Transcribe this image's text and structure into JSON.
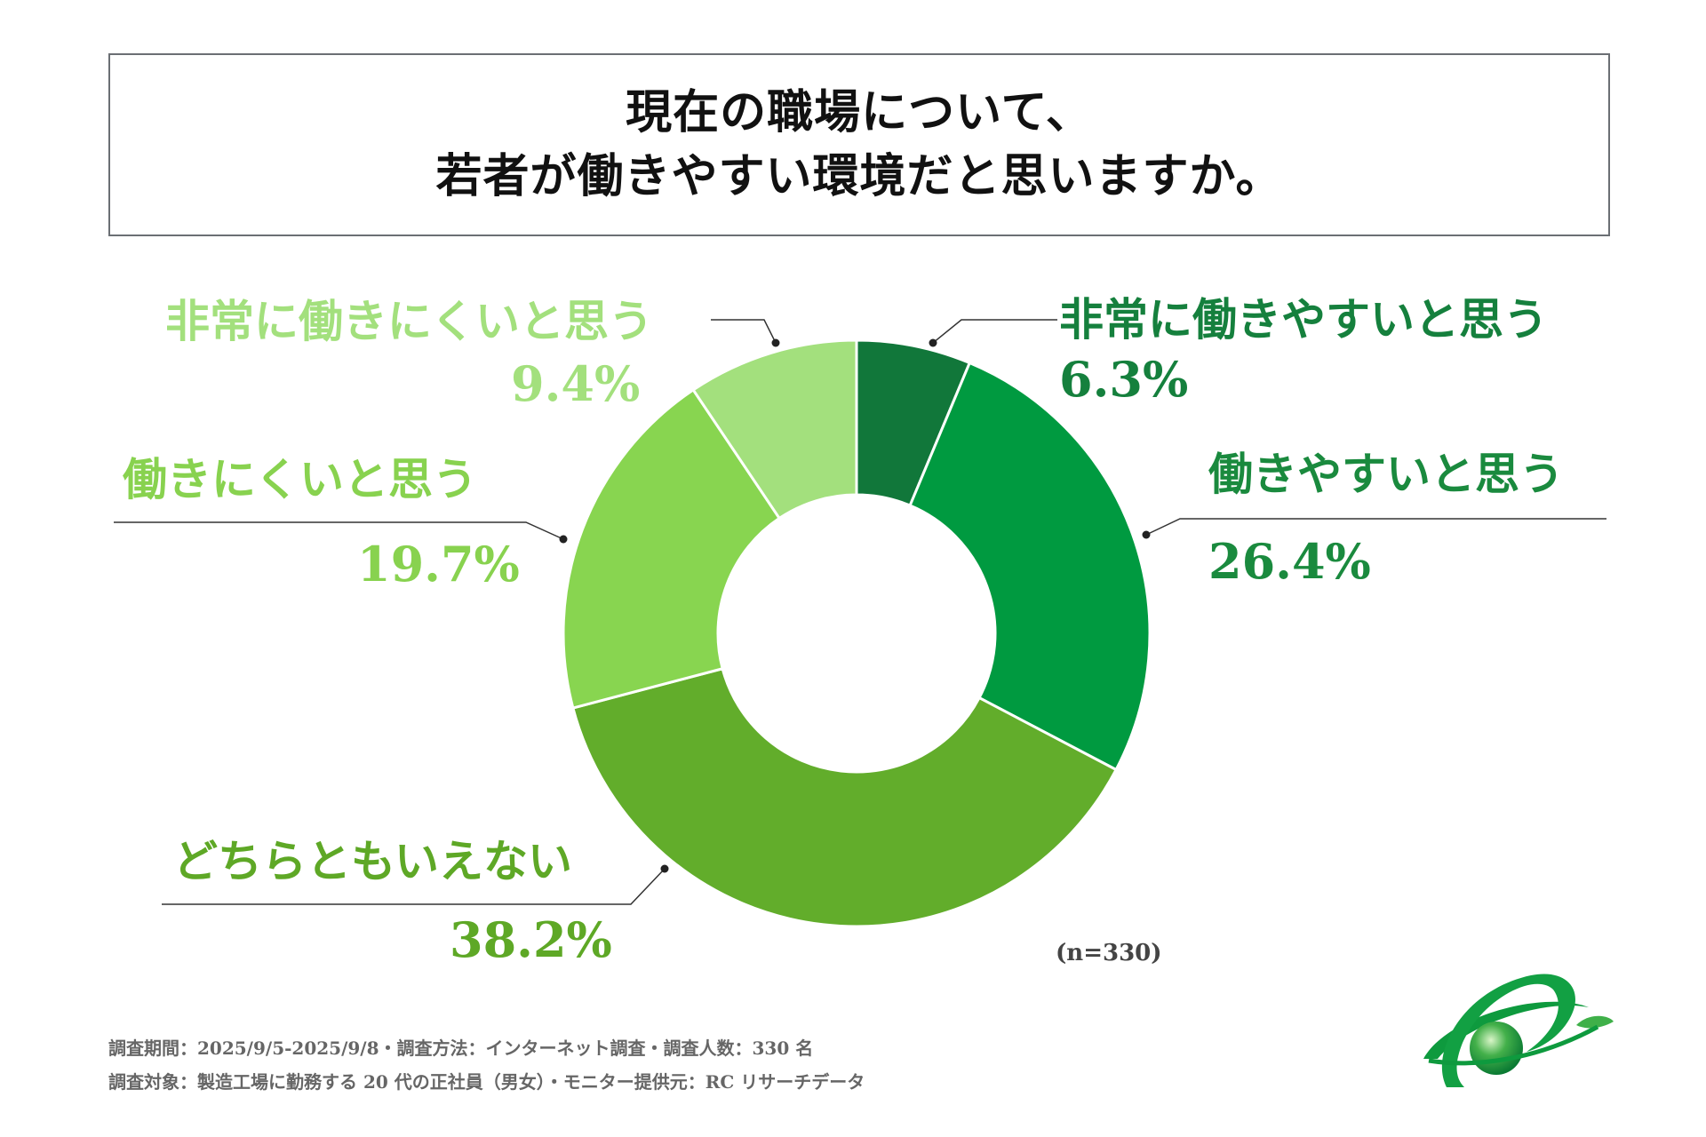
{
  "title": {
    "line1": "現在の職場について、",
    "line2": "若者が働きやすい環境だと思いますか。"
  },
  "chart_data": {
    "type": "pie",
    "donut": true,
    "categories": [
      "非常に働きやすいと思う",
      "働きやすいと思う",
      "どちらともいえない",
      "働きにくいと思う",
      "非常に働きにくいと思う"
    ],
    "values": [
      6.3,
      26.4,
      38.2,
      19.7,
      9.4
    ],
    "value_labels": [
      "6.3%",
      "26.4%",
      "38.2%",
      "19.7%",
      "9.4%"
    ],
    "colors": [
      "#11773a",
      "#009a40",
      "#62ad2b",
      "#88d550",
      "#a3e07d"
    ],
    "label_colors": [
      "#15803d",
      "#1a8a3e",
      "#5ea826",
      "#88d24f",
      "#a3e07d"
    ],
    "sample": "(n=330)"
  },
  "footer": {
    "line1": "調査期間：2025/9/5-2025/9/8・調査方法：インターネット調査・調査人数：330 名",
    "line2": "調査対象：製造工場に勤務する 20 代の正社員（男女）・モニター提供元：RC リサーチデータ"
  },
  "logo": {
    "icon": "globe-leaf-icon",
    "colors": [
      "#0e9a3e",
      "#42b549"
    ]
  }
}
